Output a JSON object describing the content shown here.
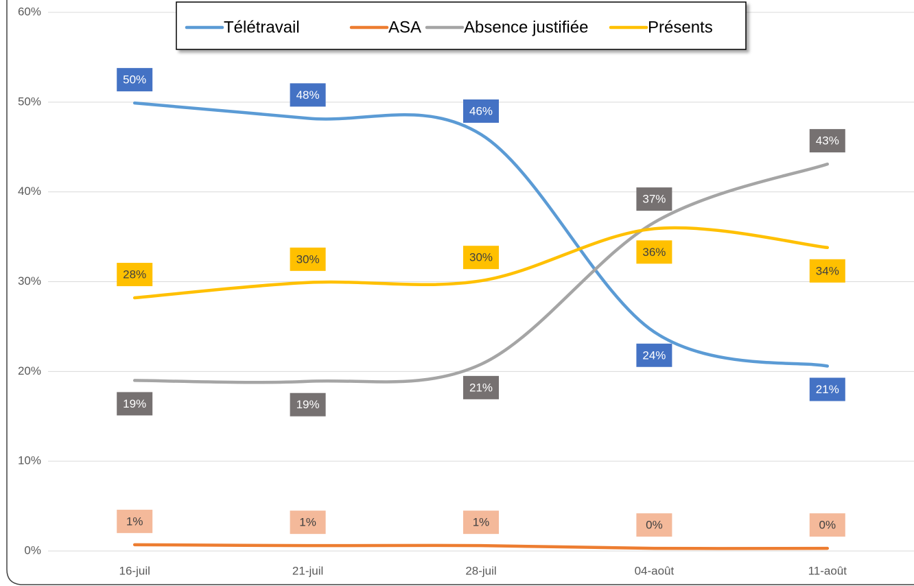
{
  "chart_data": {
    "type": "line",
    "categories": [
      "16-juil",
      "21-juil",
      "28-juil",
      "04-août",
      "11-août"
    ],
    "series": [
      {
        "name": "Télétravail",
        "color": "#5b9bd5",
        "label_color": "#4472c4",
        "values": [
          49.9,
          48.2,
          46.4,
          24.4,
          20.6
        ],
        "value_labels": [
          "50%",
          "48%",
          "46%",
          "24%",
          "21%"
        ]
      },
      {
        "name": "ASA",
        "color": "#ed7d31",
        "label_color": "#f4b99a",
        "values": [
          0.7,
          0.6,
          0.6,
          0.3,
          0.3
        ],
        "value_labels": [
          "1%",
          "1%",
          "1%",
          "0%",
          "0%"
        ]
      },
      {
        "name": "Absence justifiée",
        "color": "#a5a5a5",
        "label_color": "#767171",
        "values": [
          19.0,
          18.9,
          20.8,
          36.6,
          43.1
        ],
        "value_labels": [
          "19%",
          "19%",
          "21%",
          "37%",
          "43%"
        ]
      },
      {
        "name": "Présents",
        "color": "#ffc000",
        "label_color": "#ffc000",
        "values": [
          28.2,
          29.9,
          30.1,
          35.9,
          33.8
        ],
        "value_labels": [
          "28%",
          "30%",
          "30%",
          "36%",
          "34%"
        ]
      }
    ],
    "ylim": [
      0,
      60
    ],
    "yticks": [
      {
        "value": 0,
        "label": "0%"
      },
      {
        "value": 10,
        "label": "10%"
      },
      {
        "value": 20,
        "label": "20%"
      },
      {
        "value": 30,
        "label": "30%"
      },
      {
        "value": 40,
        "label": "40%"
      },
      {
        "value": 50,
        "label": "50%"
      },
      {
        "value": 60,
        "label": "60%"
      }
    ],
    "grid": true,
    "legend": "top",
    "smooth": true
  }
}
